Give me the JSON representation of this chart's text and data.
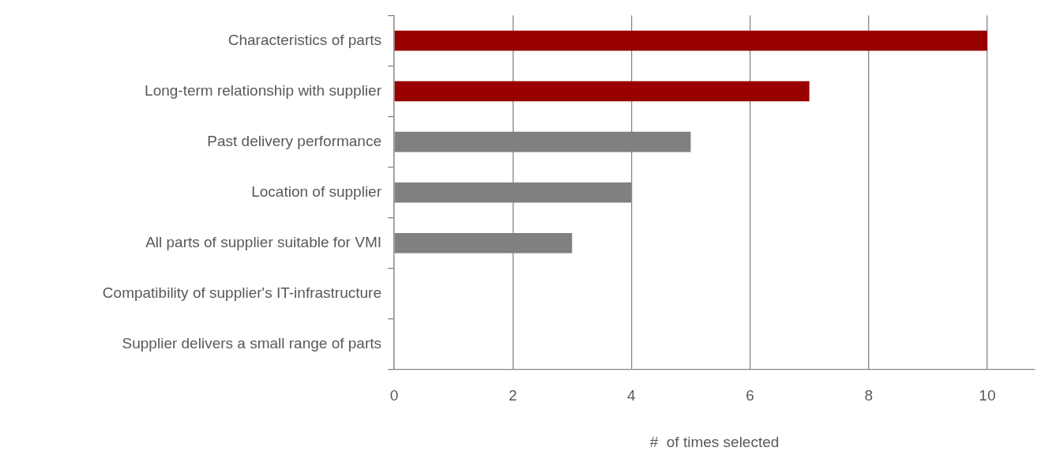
{
  "chart_data": {
    "type": "bar",
    "orientation": "horizontal",
    "xlabel": "#  of times selected",
    "categories": [
      "Characteristics of parts",
      "Long-term relationship with supplier",
      "Past delivery performance",
      "Location of supplier",
      "All parts of supplier suitable for VMI",
      "Compatibility of supplier's IT-infrastructure",
      "Supplier delivers a small range of parts"
    ],
    "values": [
      10,
      7,
      5,
      4,
      3,
      0,
      0
    ],
    "colors": [
      "#990000",
      "#990000",
      "#808080",
      "#808080",
      "#808080",
      "#808080",
      "#808080"
    ],
    "xlim": [
      0,
      10.8
    ],
    "xticks": [
      0,
      2,
      4,
      6,
      8,
      10
    ],
    "grid": "x",
    "legend": false
  }
}
